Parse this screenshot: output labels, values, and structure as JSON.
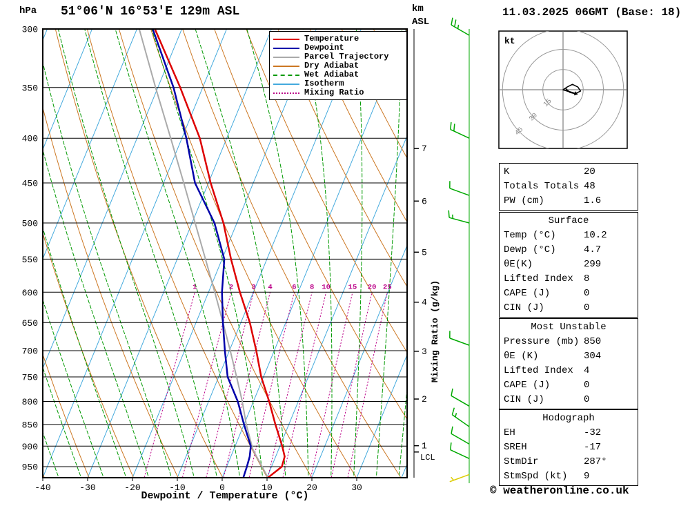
{
  "header": {
    "pressure_unit": "hPa",
    "station_title": "51°06'N 16°53'E 129m ASL",
    "altitude_unit": "km",
    "altitude_ref": "ASL",
    "datetime_title": "11.03.2025 06GMT (Base: 18)"
  },
  "chart_data": {
    "type": "skewt_log_p_sounding",
    "xlabel": "Dewpoint / Temperature (°C)",
    "x_tick_labels": [
      -40,
      -30,
      -20,
      -10,
      0,
      10,
      20,
      30
    ],
    "pressure_ticks_hpa": [
      300,
      350,
      400,
      450,
      500,
      550,
      600,
      650,
      700,
      750,
      800,
      850,
      900,
      950
    ],
    "pressure_axis_range_hpa": [
      300,
      978
    ],
    "km_asl_ticks": [
      {
        "km": 1,
        "hpa": 899
      },
      {
        "km": 2,
        "hpa": 795
      },
      {
        "km": 3,
        "hpa": 701
      },
      {
        "km": 4,
        "hpa": 616
      },
      {
        "km": 5,
        "hpa": 540
      },
      {
        "km": 6,
        "hpa": 472
      },
      {
        "km": 7,
        "hpa": 411
      }
    ],
    "lcl": {
      "label": "LCL",
      "hpa": 914
    },
    "right_axis_label": "Mixing Ratio (g/kg)",
    "mixing_ratio_lines_gkg": [
      1,
      2,
      3,
      4,
      6,
      8,
      10,
      15,
      20,
      25
    ],
    "isotherm_step_c": 10,
    "dry_adiabat_step_k": 10,
    "wet_adiabat_step_c": 5,
    "legend": {
      "items": [
        {
          "label": "Temperature",
          "style": "solid",
          "color": "#dd0000"
        },
        {
          "label": "Dewpoint",
          "style": "solid",
          "color": "#0000aa"
        },
        {
          "label": "Parcel Trajectory",
          "style": "solid",
          "color": "#aaaaaa"
        },
        {
          "label": "Dry Adiabat",
          "style": "solid",
          "color": "#cc7722"
        },
        {
          "label": "Wet Adiabat",
          "style": "dashed",
          "color": "#009900"
        },
        {
          "label": "Isotherm",
          "style": "solid",
          "color": "#44aadd"
        },
        {
          "label": "Mixing Ratio",
          "style": "dotted",
          "color": "#bb0088"
        }
      ]
    },
    "temperature_profile_p_t": [
      [
        978,
        10.2
      ],
      [
        950,
        12.3
      ],
      [
        925,
        12.0
      ],
      [
        900,
        10.5
      ],
      [
        850,
        7.0
      ],
      [
        800,
        3.5
      ],
      [
        750,
        -0.5
      ],
      [
        700,
        -4.0
      ],
      [
        650,
        -8.0
      ],
      [
        600,
        -13.0
      ],
      [
        550,
        -18.0
      ],
      [
        500,
        -23.0
      ],
      [
        450,
        -29.5
      ],
      [
        400,
        -36.0
      ],
      [
        350,
        -45.0
      ],
      [
        300,
        -56.0
      ]
    ],
    "dewpoint_profile_p_t": [
      [
        978,
        4.7
      ],
      [
        950,
        4.5
      ],
      [
        925,
        4.2
      ],
      [
        900,
        3.5
      ],
      [
        850,
        0.0
      ],
      [
        800,
        -3.5
      ],
      [
        750,
        -8.0
      ],
      [
        700,
        -11.0
      ],
      [
        650,
        -14.0
      ],
      [
        600,
        -17.0
      ],
      [
        550,
        -19.5
      ],
      [
        500,
        -25.0
      ],
      [
        450,
        -33.0
      ],
      [
        400,
        -39.0
      ],
      [
        350,
        -46.5
      ],
      [
        300,
        -56.5
      ]
    ],
    "parcel_profile_p_t": [
      [
        978,
        10.2
      ],
      [
        950,
        7.9
      ],
      [
        920,
        5.3
      ],
      [
        907,
        4.2
      ],
      [
        850,
        0.5
      ],
      [
        800,
        -2.5
      ],
      [
        750,
        -6.0
      ],
      [
        700,
        -9.8
      ],
      [
        650,
        -14.0
      ],
      [
        600,
        -18.6
      ],
      [
        550,
        -23.7
      ],
      [
        500,
        -29.3
      ],
      [
        450,
        -35.5
      ],
      [
        400,
        -42.5
      ],
      [
        350,
        -50.5
      ],
      [
        300,
        -59.5
      ]
    ],
    "wind_barbs": [
      {
        "hpa": 305,
        "dir_deg": 300,
        "speed_kt": 25
      },
      {
        "hpa": 400,
        "dir_deg": 295,
        "speed_kt": 20
      },
      {
        "hpa": 465,
        "dir_deg": 290,
        "speed_kt": 10
      },
      {
        "hpa": 500,
        "dir_deg": 285,
        "speed_kt": 15
      },
      {
        "hpa": 690,
        "dir_deg": 290,
        "speed_kt": 10
      },
      {
        "hpa": 810,
        "dir_deg": 300,
        "speed_kt": 10
      },
      {
        "hpa": 855,
        "dir_deg": 305,
        "speed_kt": 15
      },
      {
        "hpa": 895,
        "dir_deg": 300,
        "speed_kt": 10
      },
      {
        "hpa": 930,
        "dir_deg": 295,
        "speed_kt": 10
      },
      {
        "hpa": 970,
        "dir_deg": 250,
        "speed_kt": 5,
        "color": "#ddcc00"
      }
    ]
  },
  "hodograph": {
    "unit_label": "kt",
    "rings_kt": [
      15,
      30,
      45
    ],
    "trace_uv_kt": [
      [
        0,
        0
      ],
      [
        3,
        2
      ],
      [
        7,
        4
      ],
      [
        11,
        2
      ],
      [
        13,
        -1
      ],
      [
        9,
        -3
      ],
      [
        5,
        -2
      ],
      [
        2,
        1
      ]
    ],
    "storm_motion": {
      "dir_deg": 287,
      "speed_kt": 9
    }
  },
  "tables": [
    {
      "rows": [
        [
          "K",
          "20"
        ],
        [
          "Totals Totals",
          "48"
        ],
        [
          "PW (cm)",
          "1.6"
        ]
      ]
    },
    {
      "title": "Surface",
      "rows": [
        [
          "Temp (°C)",
          "10.2"
        ],
        [
          "Dewp (°C)",
          "4.7"
        ],
        [
          "θE(K)",
          "299"
        ],
        [
          "Lifted Index",
          "8"
        ],
        [
          "CAPE (J)",
          "0"
        ],
        [
          "CIN (J)",
          "0"
        ]
      ]
    },
    {
      "title": "Most Unstable",
      "rows": [
        [
          "Pressure (mb)",
          "850"
        ],
        [
          "θE (K)",
          "304"
        ],
        [
          "Lifted Index",
          "4"
        ],
        [
          "CAPE (J)",
          "0"
        ],
        [
          "CIN (J)",
          "0"
        ]
      ]
    },
    {
      "title": "Hodograph",
      "rows": [
        [
          "EH",
          "-32"
        ],
        [
          "SREH",
          "-17"
        ],
        [
          "StmDir",
          "287°"
        ],
        [
          "StmSpd (kt)",
          "9"
        ]
      ]
    }
  ],
  "footer": {
    "copyright": "© weatheronline.co.uk"
  },
  "colors": {
    "temperature": "#dd0000",
    "dewpoint": "#0000aa",
    "parcel": "#aaaaaa",
    "dry_adiabat": "#cc7722",
    "wet_adiabat": "#009900",
    "isotherm": "#44aadd",
    "mixing_ratio": "#bb0088",
    "wind_barb": "#00a900"
  }
}
